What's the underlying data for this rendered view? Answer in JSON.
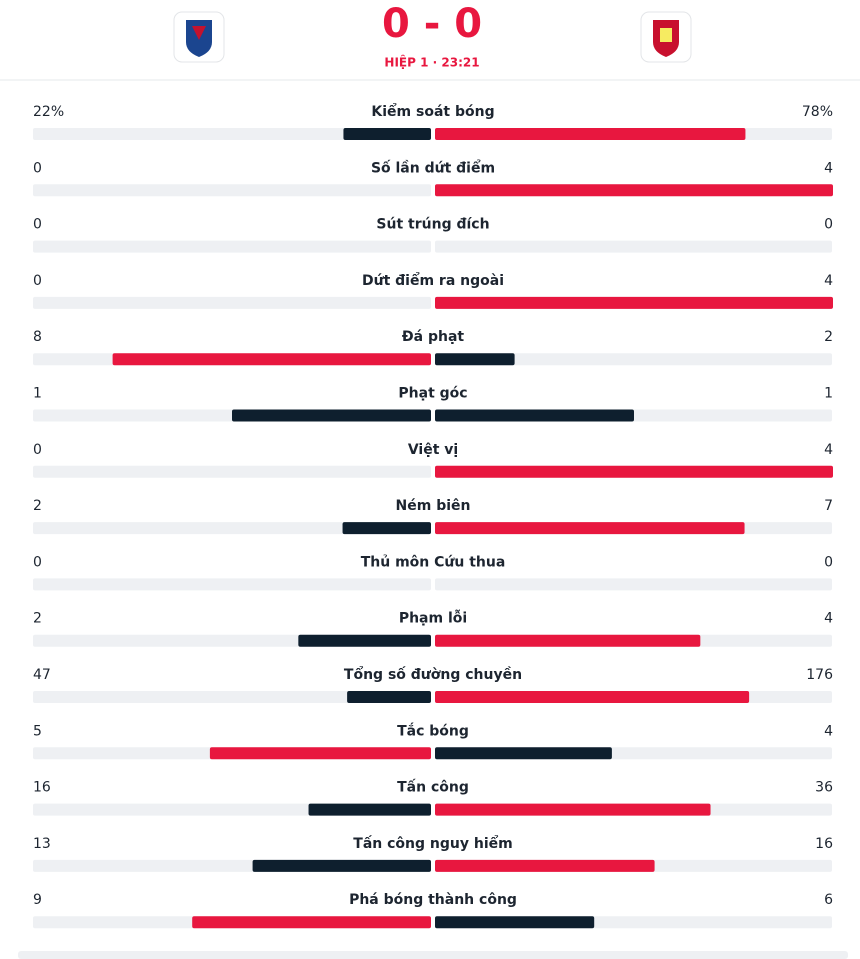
{
  "header": {
    "score": "0 - 0",
    "period": "HIỆP 1 · 23:21"
  },
  "settings": {
    "leading_color": "#e8173f",
    "trailing_color": "#0e1f2e",
    "track_color": "#eef0f3"
  },
  "stats": [
    {
      "label": "Kiểm soát bóng",
      "home": 22,
      "away": 78,
      "home_label": "22%",
      "away_label": "78%"
    },
    {
      "label": "Số lần dứt điểm",
      "home": 0,
      "away": 4
    },
    {
      "label": "Sút trúng đích",
      "home": 0,
      "away": 0
    },
    {
      "label": "Dứt điểm ra ngoài",
      "home": 0,
      "away": 4
    },
    {
      "label": "Đá phạt",
      "home": 8,
      "away": 2
    },
    {
      "label": "Phạt góc",
      "home": 1,
      "away": 1
    },
    {
      "label": "Việt vị",
      "home": 0,
      "away": 4
    },
    {
      "label": "Ném biên",
      "home": 2,
      "away": 7
    },
    {
      "label": "Thủ môn Cứu thua",
      "home": 0,
      "away": 0
    },
    {
      "label": "Phạm lỗi",
      "home": 2,
      "away": 4
    },
    {
      "label": "Tổng số đường chuyền",
      "home": 47,
      "away": 176
    },
    {
      "label": "Tắc bóng",
      "home": 5,
      "away": 4
    },
    {
      "label": "Tấn công",
      "home": 16,
      "away": 36
    },
    {
      "label": "Tấn công nguy hiểm",
      "home": 13,
      "away": 16
    },
    {
      "label": "Phá bóng thành công",
      "home": 9,
      "away": 6
    }
  ]
}
